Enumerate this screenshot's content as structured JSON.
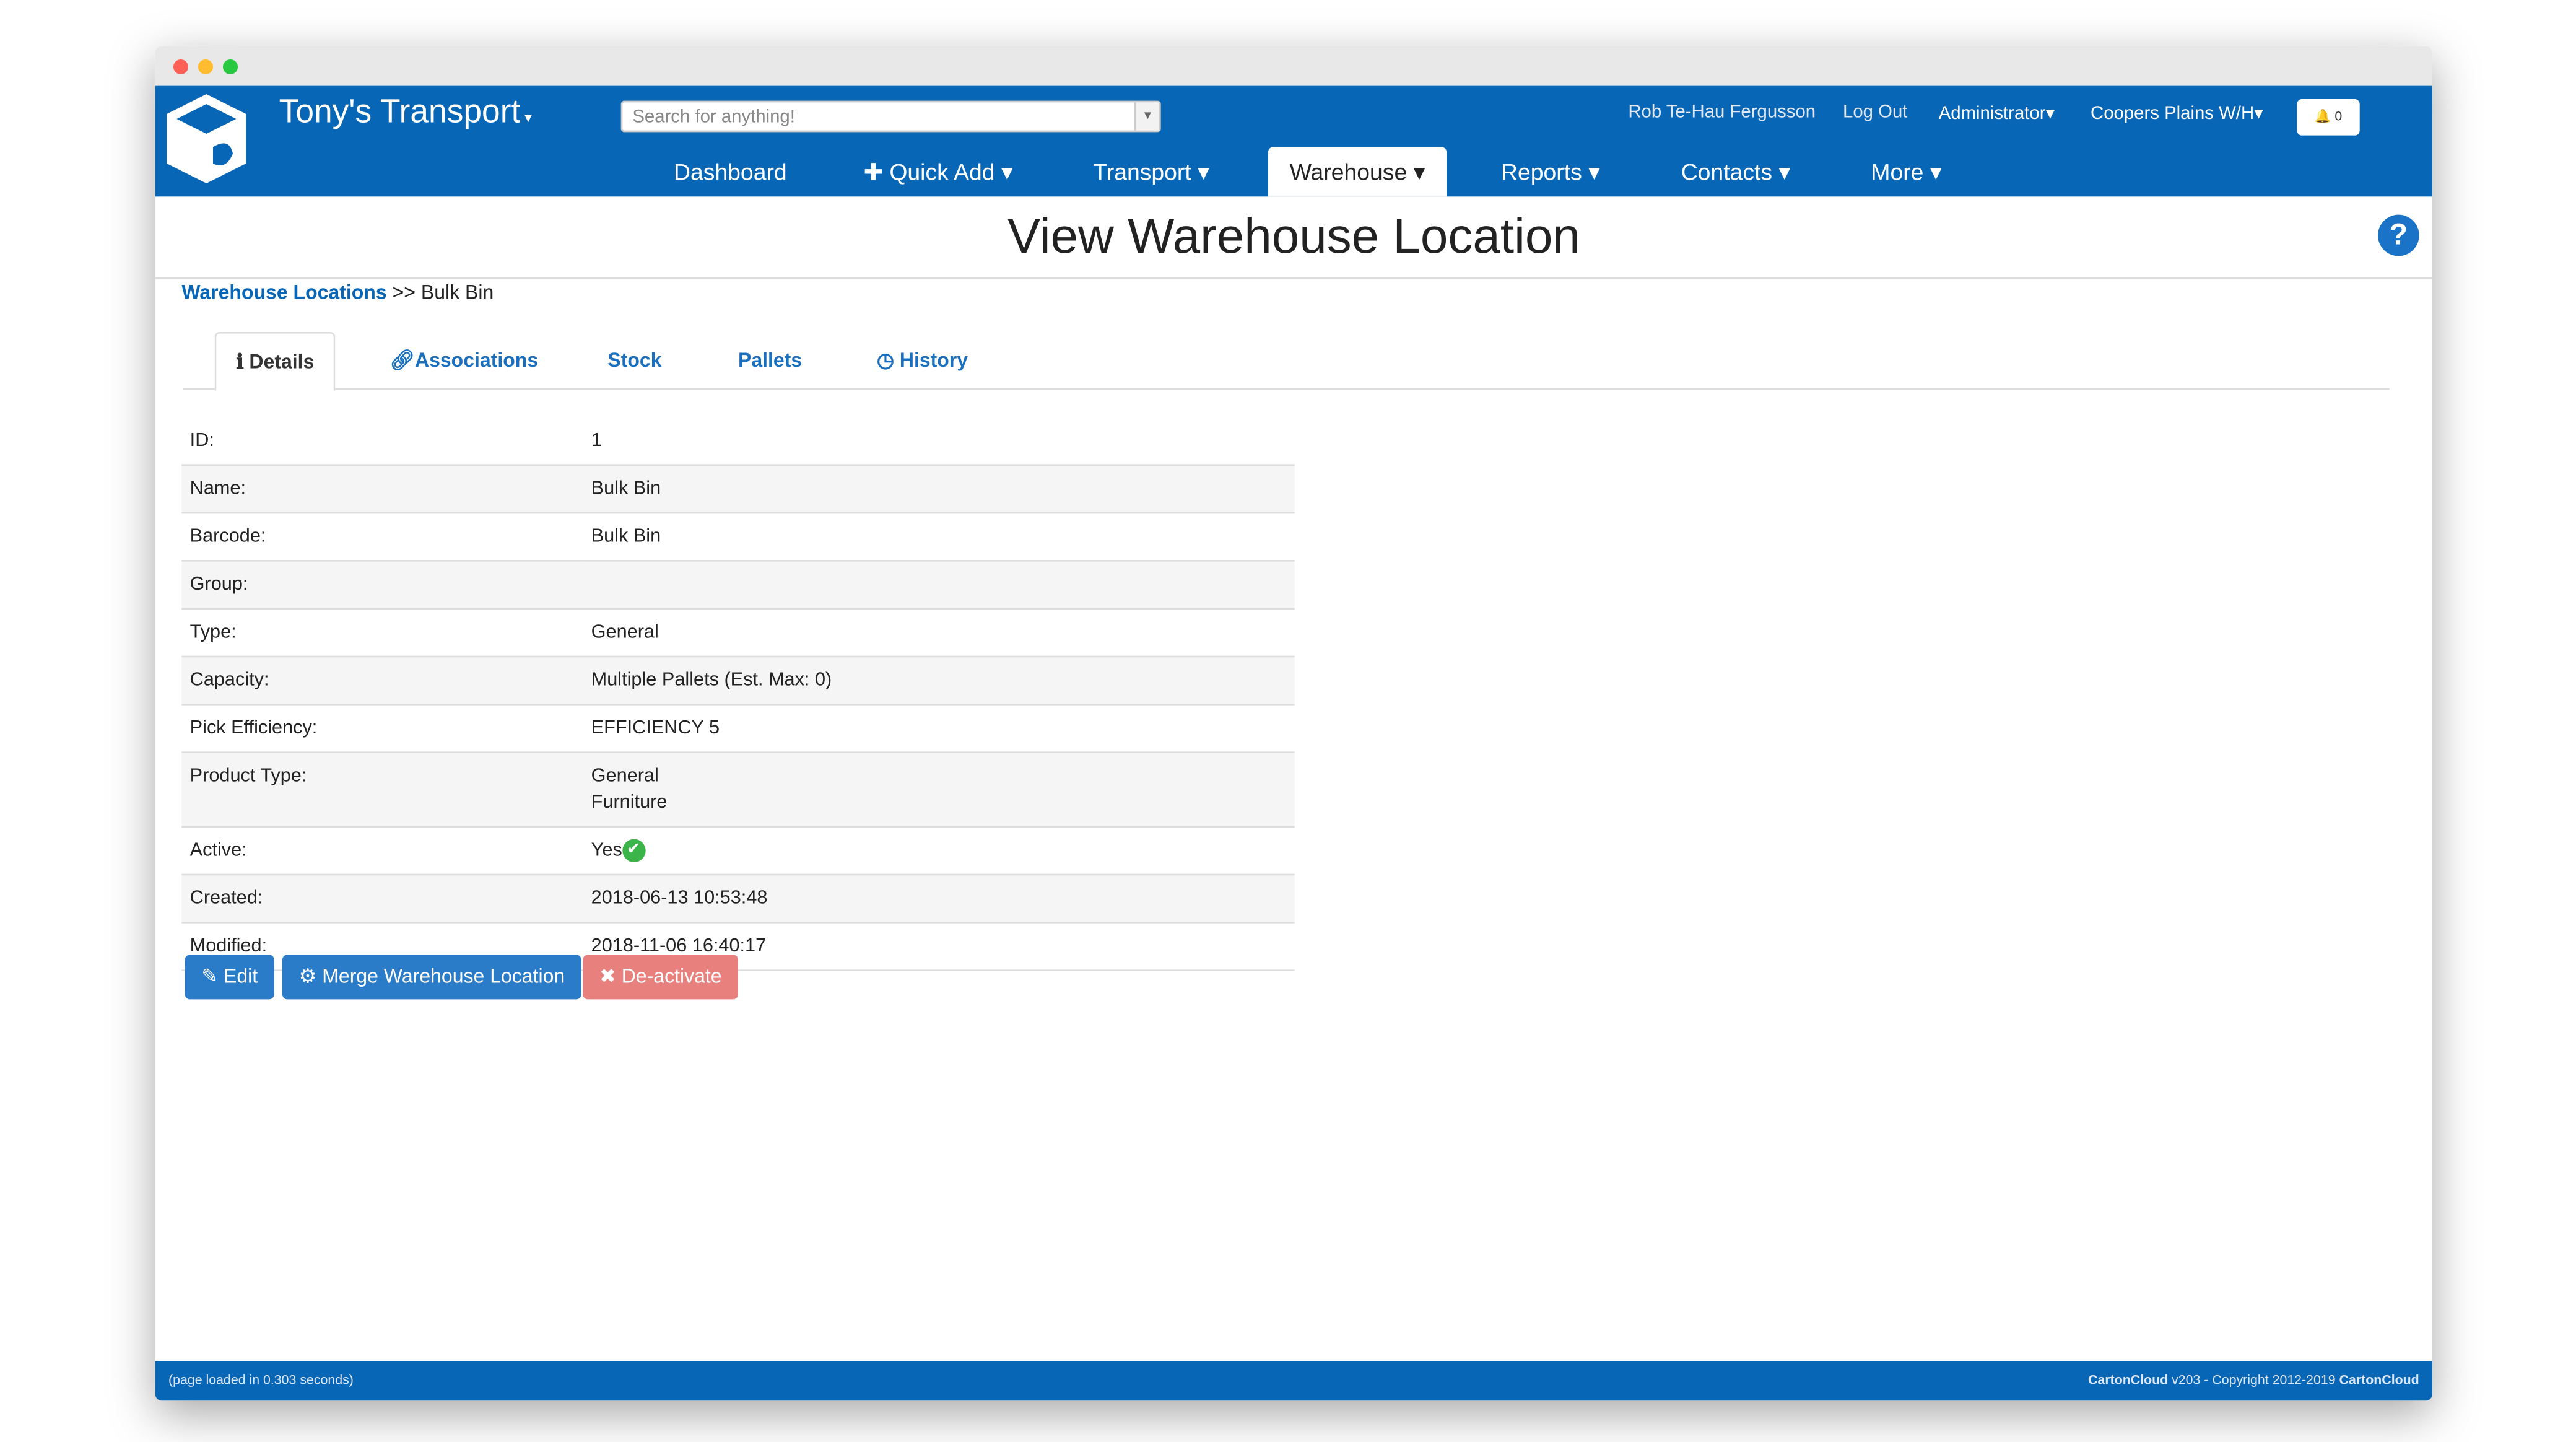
{
  "window": {
    "controls": {
      "close": "#fe5f57",
      "minimize": "#febc2e",
      "maximize": "#28c840"
    }
  },
  "header": {
    "brand": "Tony's Transport",
    "search_placeholder": "Search for anything!",
    "user": "Rob Te-Hau Fergusson",
    "logout": "Log Out",
    "role": "Administrator",
    "warehouse": "Coopers Plains W/H",
    "notifications": "0",
    "bg_color": "#0866b6"
  },
  "nav": {
    "items": [
      {
        "label": "Dashboard"
      },
      {
        "label": "Quick Add"
      },
      {
        "label": "Transport"
      },
      {
        "label": "Warehouse"
      },
      {
        "label": "Reports"
      },
      {
        "label": "Contacts"
      },
      {
        "label": "More"
      }
    ],
    "active": "Warehouse"
  },
  "page": {
    "title": "View Warehouse Location",
    "breadcrumb_link": "Warehouse Locations",
    "breadcrumb_sep": ">>",
    "breadcrumb_current": "Bulk Bin"
  },
  "tabs": [
    {
      "label": "Details"
    },
    {
      "label": "Associations"
    },
    {
      "label": "Stock"
    },
    {
      "label": "Pallets"
    },
    {
      "label": "History"
    }
  ],
  "details": [
    {
      "label": "ID:",
      "value": "1"
    },
    {
      "label": "Name:",
      "value": "Bulk Bin"
    },
    {
      "label": "Barcode:",
      "value": "Bulk Bin"
    },
    {
      "label": "Group:",
      "value": ""
    },
    {
      "label": "Type:",
      "value": "General"
    },
    {
      "label": "Capacity:",
      "value": "Multiple Pallets (Est. Max: 0)"
    },
    {
      "label": "Pick Efficiency:",
      "value": "EFFICIENCY 5"
    },
    {
      "label": "Product Type:",
      "value": "General",
      "value2": "Furniture"
    },
    {
      "label": "Active:",
      "value": "Yes"
    },
    {
      "label": "Created:",
      "value": "2018-06-13 10:53:48"
    },
    {
      "label": "Modified:",
      "value": "2018-11-06 16:40:17"
    }
  ],
  "actions": {
    "edit": "Edit",
    "merge": "Merge Warehouse Location",
    "deactivate": "De-activate"
  },
  "footer": {
    "load": "(page loaded in 0.303 seconds)",
    "copyright_prefix": "CartonCloud",
    "copyright_mid": " v203 - Copyright 2012-2019 ",
    "copyright_suffix": "CartonCloud"
  }
}
